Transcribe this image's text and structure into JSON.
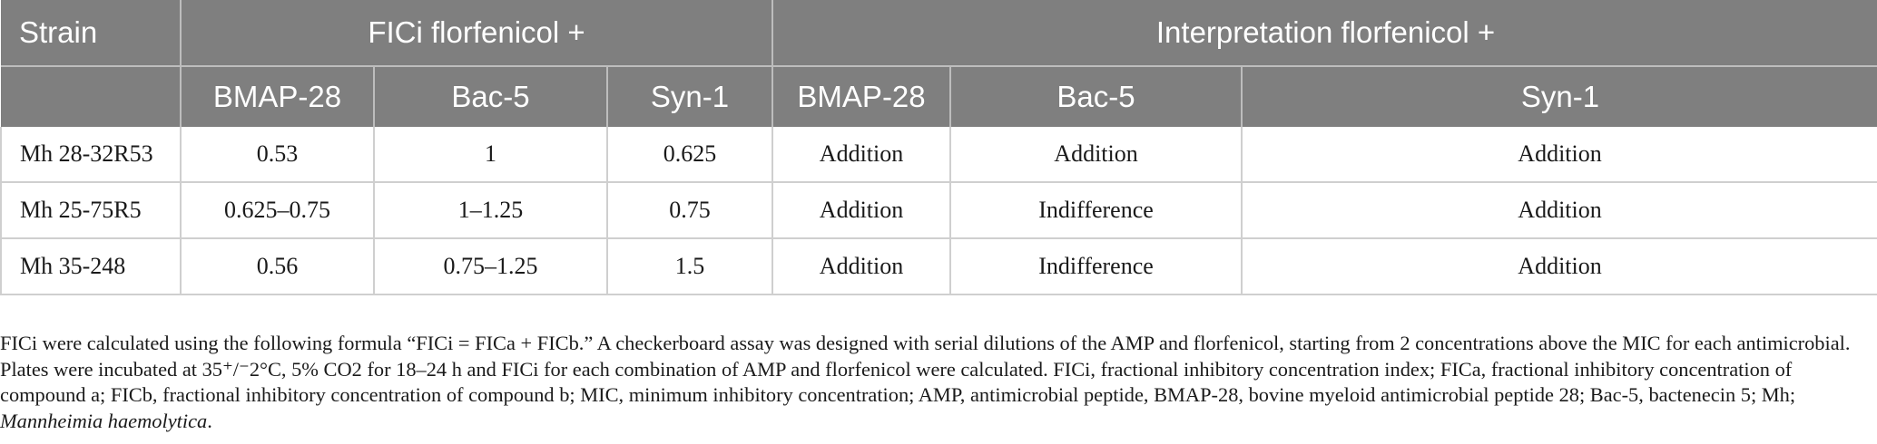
{
  "table": {
    "headers": {
      "strain": "Strain",
      "group_fici": "FICi florfenicol +",
      "group_interp": "Interpretation florfenicol +",
      "sub": [
        "BMAP-28",
        "Bac-5",
        "Syn-1",
        "BMAP-28",
        "Bac-5",
        "Syn-1"
      ]
    },
    "rows": [
      {
        "strain": "Mh 28-32R53",
        "fici": [
          "0.53",
          "1",
          "0.625"
        ],
        "interp": [
          "Addition",
          "Addition",
          "Addition"
        ]
      },
      {
        "strain": "Mh 25-75R5",
        "fici": [
          "0.625–0.75",
          "1–1.25",
          "0.75"
        ],
        "interp": [
          "Addition",
          "Indifference",
          "Addition"
        ]
      },
      {
        "strain": "Mh 35-248",
        "fici": [
          "0.56",
          "0.75–1.25",
          "1.5"
        ],
        "interp": [
          "Addition",
          "Indifference",
          "Addition"
        ]
      }
    ]
  },
  "footnote": {
    "text": "FICi were calculated using the following formula “FICi = FICa + FICb.” A checkerboard assay was designed with serial dilutions of the AMP and florfenicol, starting from 2 concentrations above the MIC for each antimicrobial. Plates were incubated at 35⁺/⁻2°C, 5% CO2 for 18–24 h and FICi for each combination of AMP and florfenicol were calculated. FICi, fractional inhibitory concentration index; FICa, fractional inhibitory concentration of compound a; FICb, fractional inhibitory concentration of compound b; MIC, minimum inhibitory concentration; AMP, antimicrobial peptide, BMAP-28, bovine myeloid antimicrobial peptide 28; Bac-5, bactenecin 5; Mh;",
    "species": "Mannheimia haemolytica",
    "end": "."
  }
}
